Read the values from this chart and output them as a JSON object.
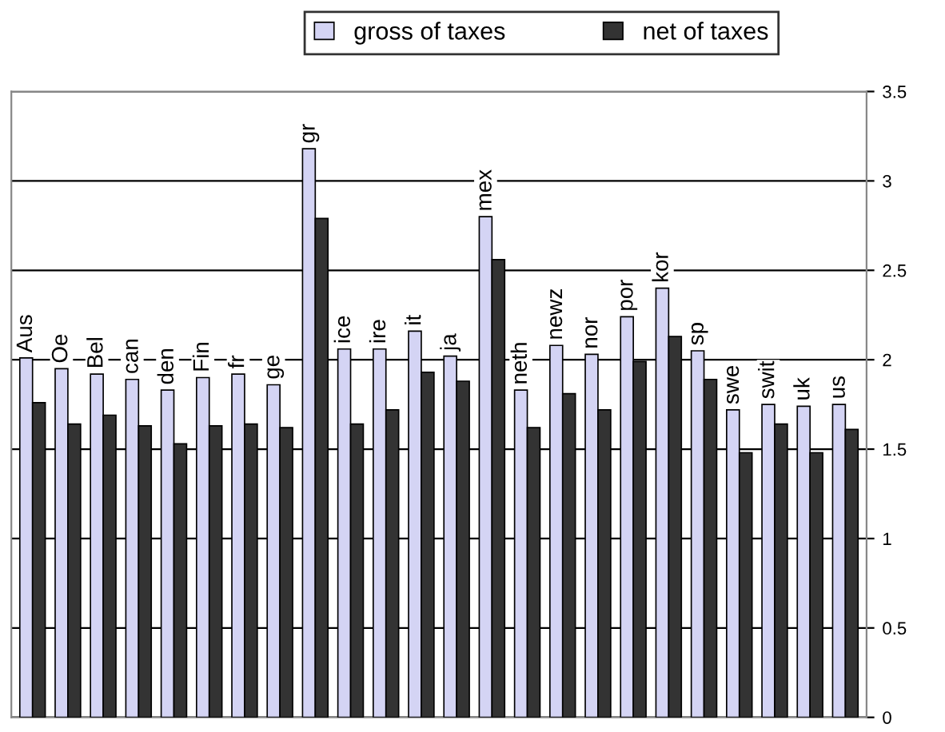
{
  "chart_data": {
    "type": "bar",
    "categories": [
      "Aus",
      "Oe",
      "Bel",
      "can",
      "den",
      "Fin",
      "fr",
      "ge",
      "gr",
      "ice",
      "ire",
      "it",
      "ja",
      "mex",
      "neth",
      "newz",
      "nor",
      "por",
      "kor",
      "sp",
      "swe",
      "swit",
      "uk",
      "us"
    ],
    "series": [
      {
        "name": "gross of taxes",
        "color": "#d4d4f4",
        "values": [
          2.01,
          1.95,
          1.92,
          1.89,
          1.83,
          1.9,
          1.92,
          1.86,
          3.18,
          2.06,
          2.06,
          2.16,
          2.02,
          2.8,
          1.83,
          2.08,
          2.03,
          2.24,
          2.4,
          2.05,
          1.72,
          1.75,
          1.74,
          1.75
        ]
      },
      {
        "name": "net of taxes",
        "color": "#333333",
        "values": [
          1.76,
          1.64,
          1.69,
          1.63,
          1.53,
          1.63,
          1.64,
          1.62,
          2.79,
          1.64,
          1.72,
          1.93,
          1.88,
          2.56,
          1.62,
          1.81,
          1.72,
          1.99,
          2.13,
          1.89,
          1.48,
          1.64,
          1.48,
          1.61
        ]
      }
    ],
    "ylim": [
      0,
      3.5
    ],
    "yticks": [
      0,
      0.5,
      1,
      1.5,
      2,
      2.5,
      3,
      3.5
    ],
    "grid": "y",
    "legend": "top"
  }
}
